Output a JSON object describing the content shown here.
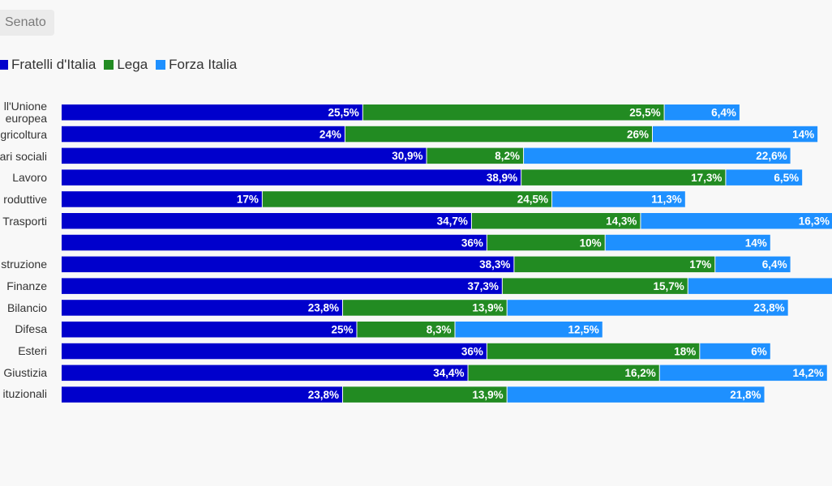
{
  "tab": {
    "label": "Senato"
  },
  "chart_data": {
    "type": "bar",
    "orientation": "horizontal",
    "stacked": true,
    "categories": [
      "Politiche dell'Unione europea",
      "Agricoltura",
      "Affari sociali",
      "Lavoro",
      "Attività produttive",
      "Trasporti",
      "",
      "Istruzione",
      "Finanze",
      "Bilancio",
      "Difesa",
      "Esteri",
      "Giustizia",
      "Affari costituzionali"
    ],
    "tick_labels": [
      "ll'Unione",
      "europea",
      "gricoltura",
      "ari sociali",
      "Lavoro",
      "roduttive",
      "Trasporti",
      "",
      "struzione",
      "Finanze",
      "Bilancio",
      "Difesa",
      "Esteri",
      "Giustizia",
      "ituzionali"
    ],
    "series": [
      {
        "name": "Fratelli d'Italia",
        "color": "#0000cc",
        "values": [
          25.5,
          24,
          30.9,
          38.9,
          17,
          34.7,
          36,
          38.3,
          37.3,
          23.8,
          25,
          36,
          34.4,
          23.8
        ],
        "labels": [
          "25,5%",
          "24%",
          "30,9%",
          "38,9%",
          "17%",
          "34,7%",
          "36%",
          "38,3%",
          "37,3%",
          "23,8%",
          "25%",
          "36%",
          "34,4%",
          "23,8%"
        ]
      },
      {
        "name": "Lega",
        "color": "#228b22",
        "values": [
          25.5,
          26,
          8.2,
          17.3,
          24.5,
          14.3,
          10,
          17,
          15.7,
          13.9,
          8.3,
          18,
          16.2,
          13.9
        ],
        "labels": [
          "25,5%",
          "26%",
          "8,2%",
          "17,3%",
          "24,5%",
          "14,3%",
          "10%",
          "17%",
          "15,7%",
          "13,9%",
          "8,3%",
          "18%",
          "16,2%",
          "13,9%"
        ]
      },
      {
        "name": "Forza Italia",
        "color": "#1e90ff",
        "values": [
          6.4,
          14,
          22.6,
          6.5,
          11.3,
          16.3,
          14,
          6.4,
          13,
          23.8,
          12.5,
          6,
          14.2,
          21.8
        ],
        "labels": [
          "6,4%",
          "14%",
          "22,6%",
          "6,5%",
          "11,3%",
          "16,3%",
          "14%",
          "6,4%",
          "",
          "23,8%",
          "12,5%",
          "6%",
          "14,2%",
          "21,8%"
        ]
      }
    ],
    "legend_position": "top-left",
    "grid": false
  }
}
